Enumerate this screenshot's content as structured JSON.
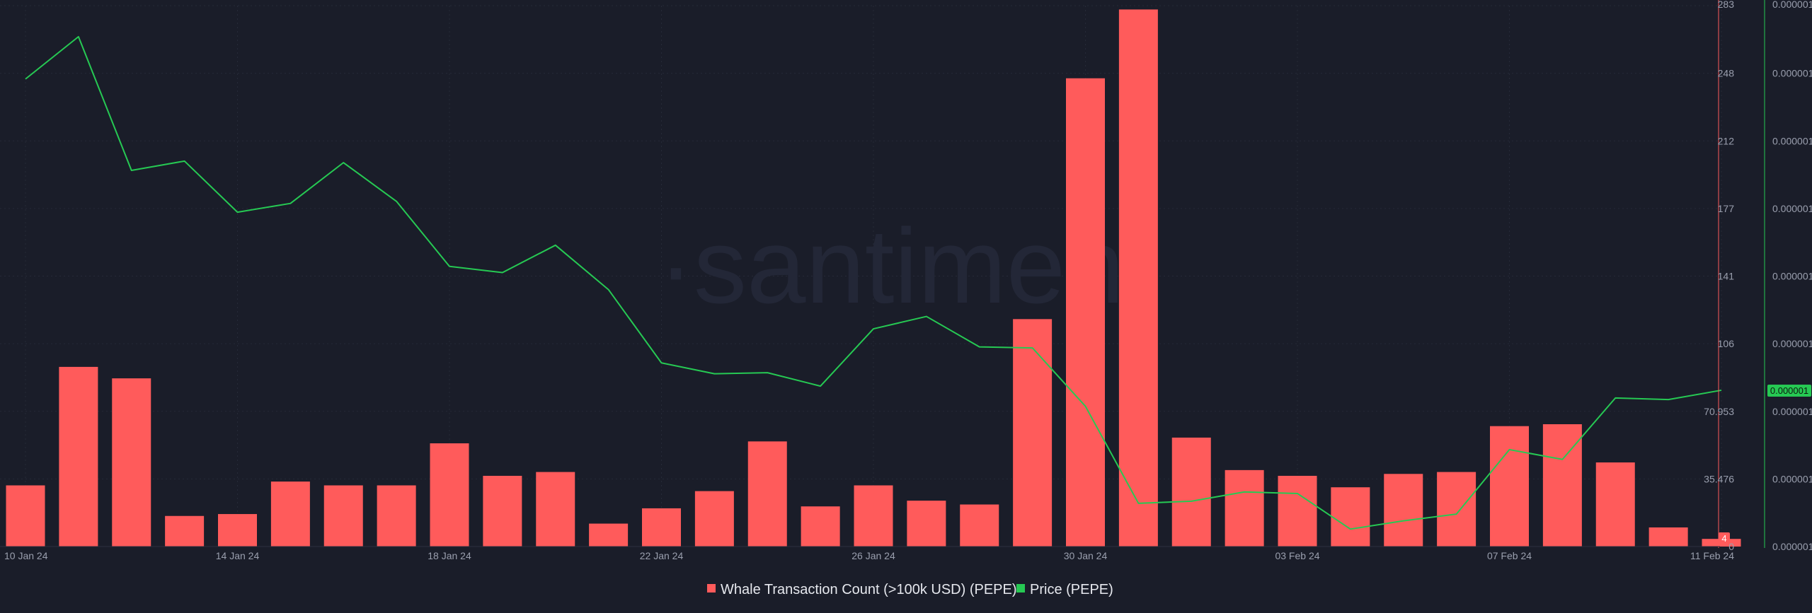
{
  "watermark": "·santiment",
  "legend": {
    "items": [
      {
        "label": "Whale Transaction Count (>100k USD) (PEPE)",
        "color": "#ff5b5b"
      },
      {
        "label": "Price (PEPE)",
        "color": "#26c953"
      }
    ]
  },
  "badges": {
    "whale_last": "4",
    "price_last": "0.000001"
  },
  "colors": {
    "background": "#1a1d29",
    "grid": "#262a38",
    "bar": "#ff5b5b",
    "price_line": "#26c953"
  },
  "chart_data": {
    "type": "bar",
    "x_tick_labels": [
      "10 Jan 24",
      "14 Jan 24",
      "18 Jan 24",
      "22 Jan 24",
      "26 Jan 24",
      "30 Jan 24",
      "03 Feb 24",
      "07 Feb 24",
      "11 Feb 24"
    ],
    "dates": [
      "10 Jan 24",
      "11 Jan 24",
      "12 Jan 24",
      "13 Jan 24",
      "14 Jan 24",
      "15 Jan 24",
      "16 Jan 24",
      "17 Jan 24",
      "18 Jan 24",
      "19 Jan 24",
      "20 Jan 24",
      "21 Jan 24",
      "22 Jan 24",
      "23 Jan 24",
      "24 Jan 24",
      "25 Jan 24",
      "26 Jan 24",
      "27 Jan 24",
      "28 Jan 24",
      "29 Jan 24",
      "30 Jan 24",
      "31 Jan 24",
      "01 Feb 24",
      "02 Feb 24",
      "03 Feb 24",
      "04 Feb 24",
      "05 Feb 24",
      "06 Feb 24",
      "07 Feb 24",
      "08 Feb 24",
      "09 Feb 24",
      "10 Feb 24",
      "11 Feb 24"
    ],
    "ylim_left": [
      0,
      283
    ],
    "left_ticks": [
      "283",
      "248",
      "212",
      "177",
      "141",
      "106",
      "70.953",
      "35.476",
      "0"
    ],
    "right_ticks": [
      "0.000001",
      "0.000001",
      "0.000001",
      "0.000001",
      "0.000001",
      "0.000001",
      "0.000001",
      "0.000001",
      "0.000001"
    ],
    "series": [
      {
        "name": "Whale Transaction Count (>100k USD) (PEPE)",
        "type": "bar",
        "axis": "left",
        "values": [
          32,
          94,
          88,
          16,
          17,
          34,
          32,
          32,
          54,
          37,
          39,
          12,
          20,
          29,
          55,
          21,
          32,
          24,
          22,
          119,
          245,
          281,
          57,
          40,
          37,
          31,
          38,
          39,
          63,
          64,
          44,
          10,
          4
        ]
      },
      {
        "name": "Price (PEPE)",
        "type": "line",
        "axis": "right",
        "relative_level": [
          0.888,
          0.97,
          0.711,
          0.729,
          0.63,
          0.647,
          0.726,
          0.651,
          0.525,
          0.513,
          0.566,
          0.48,
          0.338,
          0.317,
          0.319,
          0.293,
          0.404,
          0.428,
          0.369,
          0.367,
          0.254,
          0.066,
          0.07,
          0.088,
          0.085,
          0.016,
          0.032,
          0.045,
          0.17,
          0.151,
          0.27,
          0.267,
          0.285
        ]
      }
    ],
    "grid": true,
    "legend_position": "bottom-center"
  }
}
